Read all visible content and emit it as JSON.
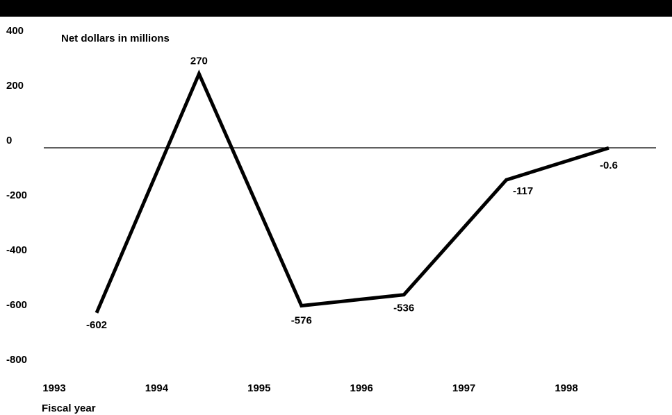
{
  "chart_data": {
    "type": "line",
    "ylabel": "Net dollars in millions",
    "xlabel": "Fiscal year",
    "x_ticks": [
      "1993",
      "1994",
      "1995",
      "1996",
      "1997",
      "1998"
    ],
    "y_ticks": [
      400,
      200,
      0,
      -200,
      -400,
      -600,
      -800
    ],
    "ylim": [
      -800,
      400
    ],
    "grid": false,
    "legend": "none",
    "series": [
      {
        "x": [
          "1993",
          "1994",
          "1995",
          "1996",
          "1997",
          "1998"
        ],
        "values": [
          -602,
          270,
          -576,
          -536,
          -117,
          -0.6
        ],
        "labels": [
          "-602",
          "270",
          "-576",
          "-536",
          "-117",
          "-0.6"
        ]
      }
    ],
    "colors": {
      "line": "#000000",
      "top_bar": "#000000",
      "zero_line": "#000000"
    }
  }
}
